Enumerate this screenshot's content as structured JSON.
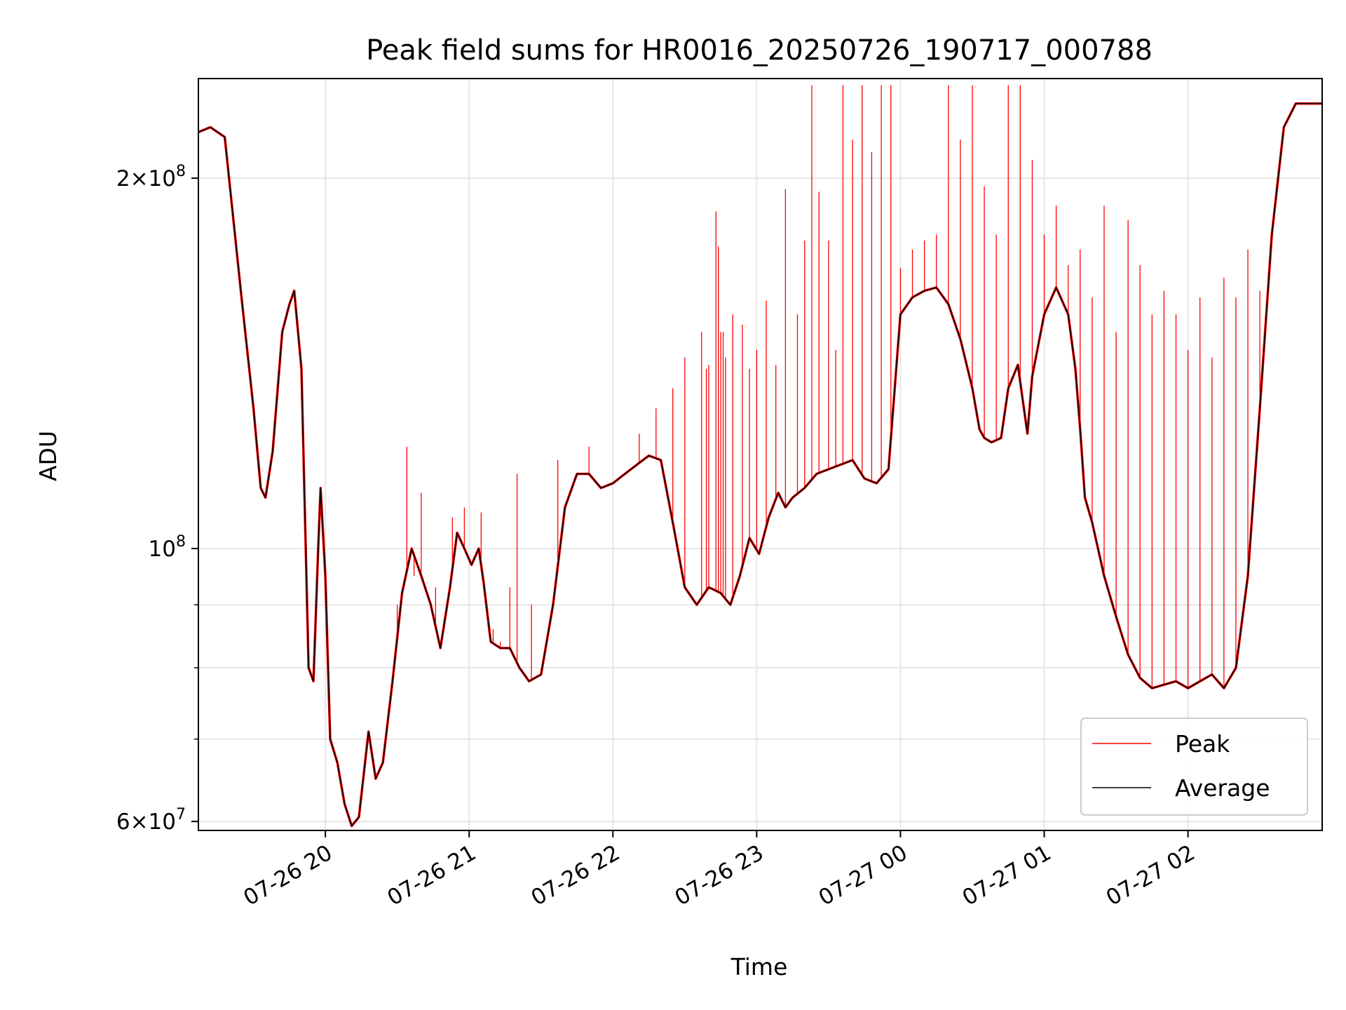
{
  "chart_data": {
    "type": "line",
    "title": "Peak field sums for HR0016_20250726_190717_000788",
    "xlabel": "Time",
    "ylabel": "ADU",
    "yscale": "log",
    "xlim": [
      "2025-07-26 19:07",
      "2025-07-27 02:56"
    ],
    "ylim": [
      59000000,
      241000000
    ],
    "grid": true,
    "legend_position": "lower-right",
    "x_ticks": [
      {
        "t": "2025-07-26 20:00",
        "label": "07-26 20"
      },
      {
        "t": "2025-07-26 21:00",
        "label": "07-26 21"
      },
      {
        "t": "2025-07-26 22:00",
        "label": "07-26 22"
      },
      {
        "t": "2025-07-26 23:00",
        "label": "07-26 23"
      },
      {
        "t": "2025-07-27 00:00",
        "label": "07-27 00"
      },
      {
        "t": "2025-07-27 01:00",
        "label": "07-27 01"
      },
      {
        "t": "2025-07-27 02:00",
        "label": "07-27 02"
      }
    ],
    "y_ticks_major": [
      {
        "value": 60000000,
        "base": "6×10",
        "exp": "7"
      },
      {
        "value": 100000000,
        "base": "10",
        "exp": "8"
      },
      {
        "value": 200000000,
        "base": "2×10",
        "exp": "8"
      }
    ],
    "y_ticks_minor": [
      70000000,
      80000000,
      90000000
    ],
    "series": [
      {
        "name": "Peak",
        "color": "#ff0000",
        "spikes": [
          [
            "2025-07-26 20:30",
            90000000
          ],
          [
            "2025-07-26 20:34",
            121000000
          ],
          [
            "2025-07-26 20:37",
            95000000
          ],
          [
            "2025-07-26 20:40",
            111000000
          ],
          [
            "2025-07-26 20:46",
            93000000
          ],
          [
            "2025-07-26 20:53",
            106000000
          ],
          [
            "2025-07-26 20:58",
            108000000
          ],
          [
            "2025-07-26 21:05",
            107000000
          ],
          [
            "2025-07-26 21:10",
            86000000
          ],
          [
            "2025-07-26 21:13",
            84000000
          ],
          [
            "2025-07-26 21:17",
            93000000
          ],
          [
            "2025-07-26 21:20",
            115000000
          ],
          [
            "2025-07-26 21:26",
            90000000
          ],
          [
            "2025-07-26 21:37",
            118000000
          ],
          [
            "2025-07-26 21:50",
            121000000
          ],
          [
            "2025-07-26 22:11",
            124000000
          ],
          [
            "2025-07-26 22:18",
            130000000
          ],
          [
            "2025-07-26 22:25",
            135000000
          ],
          [
            "2025-07-26 22:30",
            143000000
          ],
          [
            "2025-07-26 22:37",
            150000000
          ],
          [
            "2025-07-26 22:39",
            140000000
          ],
          [
            "2025-07-26 22:40",
            141000000
          ],
          [
            "2025-07-26 22:43",
            188000000
          ],
          [
            "2025-07-26 22:44",
            176000000
          ],
          [
            "2025-07-26 22:45",
            150000000
          ],
          [
            "2025-07-26 22:46",
            150000000
          ],
          [
            "2025-07-26 22:47",
            143000000
          ],
          [
            "2025-07-26 22:50",
            155000000
          ],
          [
            "2025-07-26 22:54",
            152000000
          ],
          [
            "2025-07-26 22:57",
            140000000
          ],
          [
            "2025-07-26 23:00",
            145000000
          ],
          [
            "2025-07-26 23:04",
            159000000
          ],
          [
            "2025-07-26 23:08",
            141000000
          ],
          [
            "2025-07-26 23:12",
            196000000
          ],
          [
            "2025-07-26 23:17",
            155000000
          ],
          [
            "2025-07-26 23:20",
            178000000
          ],
          [
            "2025-07-26 23:23",
            238000000
          ],
          [
            "2025-07-26 23:26",
            195000000
          ],
          [
            "2025-07-26 23:30",
            178000000
          ],
          [
            "2025-07-26 23:33",
            145000000
          ],
          [
            "2025-07-26 23:36",
            238000000
          ],
          [
            "2025-07-26 23:40",
            215000000
          ],
          [
            "2025-07-26 23:44",
            238000000
          ],
          [
            "2025-07-26 23:48",
            210000000
          ],
          [
            "2025-07-26 23:52",
            238000000
          ],
          [
            "2025-07-26 23:56",
            238000000
          ],
          [
            "2025-07-27 00:00",
            169000000
          ],
          [
            "2025-07-27 00:05",
            175000000
          ],
          [
            "2025-07-27 00:10",
            178000000
          ],
          [
            "2025-07-27 00:15",
            180000000
          ],
          [
            "2025-07-27 00:20",
            238000000
          ],
          [
            "2025-07-27 00:25",
            215000000
          ],
          [
            "2025-07-27 00:30",
            238000000
          ],
          [
            "2025-07-27 00:35",
            197000000
          ],
          [
            "2025-07-27 00:40",
            180000000
          ],
          [
            "2025-07-27 00:45",
            238000000
          ],
          [
            "2025-07-27 00:50",
            238000000
          ],
          [
            "2025-07-27 00:55",
            207000000
          ],
          [
            "2025-07-27 01:00",
            180000000
          ],
          [
            "2025-07-27 01:05",
            190000000
          ],
          [
            "2025-07-27 01:10",
            170000000
          ],
          [
            "2025-07-27 01:15",
            175000000
          ],
          [
            "2025-07-27 01:20",
            160000000
          ],
          [
            "2025-07-27 01:25",
            190000000
          ],
          [
            "2025-07-27 01:30",
            150000000
          ],
          [
            "2025-07-27 01:35",
            185000000
          ],
          [
            "2025-07-27 01:40",
            170000000
          ],
          [
            "2025-07-27 01:45",
            155000000
          ],
          [
            "2025-07-27 01:50",
            162000000
          ],
          [
            "2025-07-27 01:55",
            155000000
          ],
          [
            "2025-07-27 02:00",
            145000000
          ],
          [
            "2025-07-27 02:05",
            160000000
          ],
          [
            "2025-07-27 02:10",
            143000000
          ],
          [
            "2025-07-27 02:15",
            166000000
          ],
          [
            "2025-07-27 02:20",
            160000000
          ],
          [
            "2025-07-27 02:25",
            175000000
          ],
          [
            "2025-07-27 02:30",
            162000000
          ]
        ]
      },
      {
        "name": "Average",
        "color": "#000000",
        "points": [
          [
            "2025-07-26 19:07",
            218000000
          ],
          [
            "2025-07-26 19:12",
            220000000
          ],
          [
            "2025-07-26 19:18",
            216000000
          ],
          [
            "2025-07-26 19:25",
            160000000
          ],
          [
            "2025-07-26 19:30",
            130000000
          ],
          [
            "2025-07-26 19:33",
            112000000
          ],
          [
            "2025-07-26 19:35",
            110000000
          ],
          [
            "2025-07-26 19:38",
            120000000
          ],
          [
            "2025-07-26 19:42",
            150000000
          ],
          [
            "2025-07-26 19:45",
            158000000
          ],
          [
            "2025-07-26 19:47",
            162000000
          ],
          [
            "2025-07-26 19:50",
            140000000
          ],
          [
            "2025-07-26 19:53",
            80000000
          ],
          [
            "2025-07-26 19:55",
            78000000
          ],
          [
            "2025-07-26 19:57",
            100000000
          ],
          [
            "2025-07-26 19:58",
            112000000
          ],
          [
            "2025-07-26 20:00",
            95000000
          ],
          [
            "2025-07-26 20:02",
            70000000
          ],
          [
            "2025-07-26 20:05",
            67000000
          ],
          [
            "2025-07-26 20:08",
            62000000
          ],
          [
            "2025-07-26 20:11",
            59500000
          ],
          [
            "2025-07-26 20:14",
            60500000
          ],
          [
            "2025-07-26 20:18",
            71000000
          ],
          [
            "2025-07-26 20:21",
            65000000
          ],
          [
            "2025-07-26 20:24",
            67000000
          ],
          [
            "2025-07-26 20:28",
            78000000
          ],
          [
            "2025-07-26 20:32",
            92000000
          ],
          [
            "2025-07-26 20:36",
            100000000
          ],
          [
            "2025-07-26 20:40",
            95000000
          ],
          [
            "2025-07-26 20:44",
            90000000
          ],
          [
            "2025-07-26 20:48",
            83000000
          ],
          [
            "2025-07-26 20:52",
            93000000
          ],
          [
            "2025-07-26 20:55",
            103000000
          ],
          [
            "2025-07-26 20:58",
            100000000
          ],
          [
            "2025-07-26 21:01",
            97000000
          ],
          [
            "2025-07-26 21:04",
            100000000
          ],
          [
            "2025-07-26 21:06",
            94000000
          ],
          [
            "2025-07-26 21:09",
            84000000
          ],
          [
            "2025-07-26 21:13",
            83000000
          ],
          [
            "2025-07-26 21:17",
            83000000
          ],
          [
            "2025-07-26 21:21",
            80000000
          ],
          [
            "2025-07-26 21:25",
            78000000
          ],
          [
            "2025-07-26 21:30",
            79000000
          ],
          [
            "2025-07-26 21:35",
            90000000
          ],
          [
            "2025-07-26 21:40",
            108000000
          ],
          [
            "2025-07-26 21:45",
            115000000
          ],
          [
            "2025-07-26 21:50",
            115000000
          ],
          [
            "2025-07-26 21:55",
            112000000
          ],
          [
            "2025-07-26 22:00",
            113000000
          ],
          [
            "2025-07-26 22:05",
            115000000
          ],
          [
            "2025-07-26 22:10",
            117000000
          ],
          [
            "2025-07-26 22:15",
            119000000
          ],
          [
            "2025-07-26 22:20",
            118000000
          ],
          [
            "2025-07-26 22:25",
            105000000
          ],
          [
            "2025-07-26 22:30",
            93000000
          ],
          [
            "2025-07-26 22:35",
            90000000
          ],
          [
            "2025-07-26 22:40",
            93000000
          ],
          [
            "2025-07-26 22:45",
            92000000
          ],
          [
            "2025-07-26 22:49",
            90000000
          ],
          [
            "2025-07-26 22:53",
            95000000
          ],
          [
            "2025-07-26 22:57",
            102000000
          ],
          [
            "2025-07-26 23:01",
            99000000
          ],
          [
            "2025-07-26 23:05",
            106000000
          ],
          [
            "2025-07-26 23:09",
            111000000
          ],
          [
            "2025-07-26 23:12",
            108000000
          ],
          [
            "2025-07-26 23:15",
            110000000
          ],
          [
            "2025-07-26 23:20",
            112000000
          ],
          [
            "2025-07-26 23:25",
            115000000
          ],
          [
            "2025-07-26 23:30",
            116000000
          ],
          [
            "2025-07-26 23:35",
            117000000
          ],
          [
            "2025-07-26 23:40",
            118000000
          ],
          [
            "2025-07-26 23:45",
            114000000
          ],
          [
            "2025-07-26 23:50",
            113000000
          ],
          [
            "2025-07-26 23:55",
            116000000
          ],
          [
            "2025-07-27 00:00",
            155000000
          ],
          [
            "2025-07-27 00:05",
            160000000
          ],
          [
            "2025-07-27 00:10",
            162000000
          ],
          [
            "2025-07-27 00:15",
            163000000
          ],
          [
            "2025-07-27 00:20",
            158000000
          ],
          [
            "2025-07-27 00:25",
            148000000
          ],
          [
            "2025-07-27 00:30",
            135000000
          ],
          [
            "2025-07-27 00:33",
            125000000
          ],
          [
            "2025-07-27 00:35",
            123000000
          ],
          [
            "2025-07-27 00:38",
            122000000
          ],
          [
            "2025-07-27 00:42",
            123000000
          ],
          [
            "2025-07-27 00:45",
            135000000
          ],
          [
            "2025-07-27 00:49",
            141000000
          ],
          [
            "2025-07-27 00:53",
            124000000
          ],
          [
            "2025-07-27 00:55",
            138000000
          ],
          [
            "2025-07-27 01:00",
            155000000
          ],
          [
            "2025-07-27 01:05",
            163000000
          ],
          [
            "2025-07-27 01:10",
            155000000
          ],
          [
            "2025-07-27 01:13",
            140000000
          ],
          [
            "2025-07-27 01:15",
            125000000
          ],
          [
            "2025-07-27 01:17",
            110000000
          ],
          [
            "2025-07-27 01:20",
            105000000
          ],
          [
            "2025-07-27 01:25",
            95000000
          ],
          [
            "2025-07-27 01:30",
            88000000
          ],
          [
            "2025-07-27 01:35",
            82000000
          ],
          [
            "2025-07-27 01:40",
            78500000
          ],
          [
            "2025-07-27 01:45",
            77000000
          ],
          [
            "2025-07-27 01:50",
            77500000
          ],
          [
            "2025-07-27 01:55",
            78000000
          ],
          [
            "2025-07-27 02:00",
            77000000
          ],
          [
            "2025-07-27 02:05",
            78000000
          ],
          [
            "2025-07-27 02:10",
            79000000
          ],
          [
            "2025-07-27 02:15",
            77000000
          ],
          [
            "2025-07-27 02:20",
            80000000
          ],
          [
            "2025-07-27 02:25",
            95000000
          ],
          [
            "2025-07-27 02:30",
            130000000
          ],
          [
            "2025-07-27 02:35",
            180000000
          ],
          [
            "2025-07-27 02:40",
            220000000
          ],
          [
            "2025-07-27 02:45",
            230000000
          ],
          [
            "2025-07-27 02:56",
            230000000
          ]
        ]
      }
    ]
  }
}
